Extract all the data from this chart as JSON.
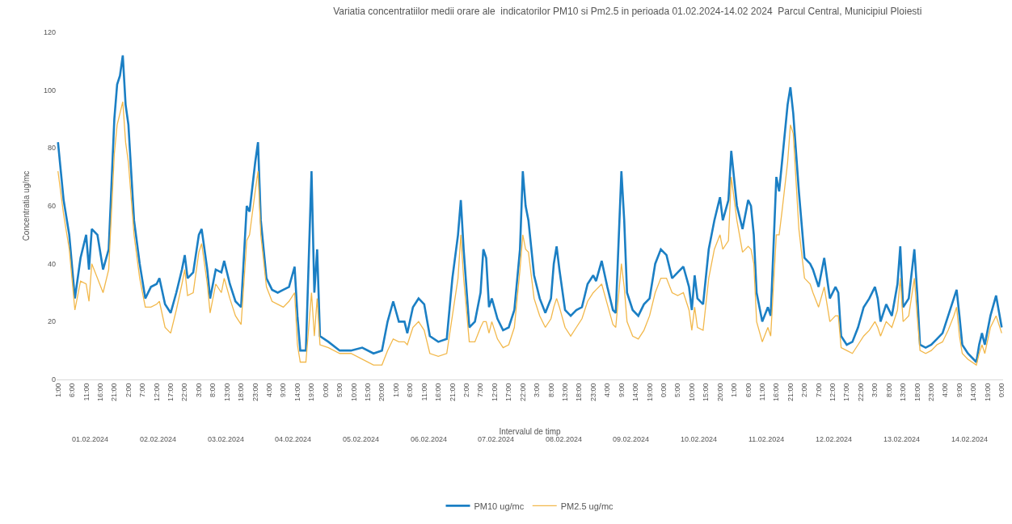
{
  "chart_data": {
    "type": "line",
    "title": "Variatia concentratiilor medii orare ale  indicatorilor PM10 si Pm2.5 in perioada 01.02.2024-14.02 2024  Parcul Central, Municipiul Ploiesti",
    "xlabel": "Intervalul de timp",
    "ylabel": "Concentratia ug/mc",
    "x": [
      "2024-02-01T01:00",
      "2024-02-01T03:00",
      "2024-02-01T05:00",
      "2024-02-01T07:00",
      "2024-02-01T09:00",
      "2024-02-01T11:00",
      "2024-02-01T12:00",
      "2024-02-01T13:00",
      "2024-02-01T15:00",
      "2024-02-01T17:00",
      "2024-02-01T19:00",
      "2024-02-01T21:00",
      "2024-02-01T22:00",
      "2024-02-01T23:00",
      "2024-02-02T00:00",
      "2024-02-02T01:00",
      "2024-02-02T02:00",
      "2024-02-02T04:00",
      "2024-02-02T06:00",
      "2024-02-02T08:00",
      "2024-02-02T10:00",
      "2024-02-02T12:00",
      "2024-02-02T13:00",
      "2024-02-02T15:00",
      "2024-02-02T17:00",
      "2024-02-02T19:00",
      "2024-02-02T21:00",
      "2024-02-02T22:00",
      "2024-02-02T23:00",
      "2024-02-03T01:00",
      "2024-02-03T03:00",
      "2024-02-03T04:00",
      "2024-02-03T06:00",
      "2024-02-03T07:00",
      "2024-02-03T09:00",
      "2024-02-03T11:00",
      "2024-02-03T12:00",
      "2024-02-03T14:00",
      "2024-02-03T16:00",
      "2024-02-03T18:00",
      "2024-02-03T20:00",
      "2024-02-03T21:00",
      "2024-02-03T23:00",
      "2024-02-04T00:00",
      "2024-02-04T01:00",
      "2024-02-04T03:00",
      "2024-02-04T05:00",
      "2024-02-04T07:00",
      "2024-02-04T09:00",
      "2024-02-04T11:00",
      "2024-02-04T13:00",
      "2024-02-04T14:00",
      "2024-02-04T15:00",
      "2024-02-04T17:00",
      "2024-02-04T19:00",
      "2024-02-04T20:00",
      "2024-02-04T21:00",
      "2024-02-04T22:00",
      "2024-02-05T01:00",
      "2024-02-05T05:00",
      "2024-02-05T09:00",
      "2024-02-05T13:00",
      "2024-02-05T17:00",
      "2024-02-05T20:00",
      "2024-02-05T22:00",
      "2024-02-06T00:00",
      "2024-02-06T02:00",
      "2024-02-06T04:00",
      "2024-02-06T05:00",
      "2024-02-06T07:00",
      "2024-02-06T09:00",
      "2024-02-06T11:00",
      "2024-02-06T13:00",
      "2024-02-06T16:00",
      "2024-02-06T19:00",
      "2024-02-06T21:00",
      "2024-02-06T23:00",
      "2024-02-07T00:00",
      "2024-02-07T01:00",
      "2024-02-07T03:00",
      "2024-02-07T05:00",
      "2024-02-07T07:00",
      "2024-02-07T08:00",
      "2024-02-07T09:00",
      "2024-02-07T10:00",
      "2024-02-07T11:00",
      "2024-02-07T13:00",
      "2024-02-07T15:00",
      "2024-02-07T17:00",
      "2024-02-07T19:00",
      "2024-02-07T21:00",
      "2024-02-07T22:00",
      "2024-02-07T23:00",
      "2024-02-08T00:00",
      "2024-02-08T02:00",
      "2024-02-08T04:00",
      "2024-02-08T06:00",
      "2024-02-08T08:00",
      "2024-02-08T09:00",
      "2024-02-08T10:00",
      "2024-02-08T11:00",
      "2024-02-08T13:00",
      "2024-02-08T15:00",
      "2024-02-08T17:00",
      "2024-02-08T19:00",
      "2024-02-08T21:00",
      "2024-02-08T23:00",
      "2024-02-09T00:00",
      "2024-02-09T02:00",
      "2024-02-09T04:00",
      "2024-02-09T06:00",
      "2024-02-09T07:00",
      "2024-02-09T09:00",
      "2024-02-09T10:00",
      "2024-02-09T11:00",
      "2024-02-09T13:00",
      "2024-02-09T15:00",
      "2024-02-09T17:00",
      "2024-02-09T19:00",
      "2024-02-09T21:00",
      "2024-02-09T23:00",
      "2024-02-10T01:00",
      "2024-02-10T03:00",
      "2024-02-10T05:00",
      "2024-02-10T07:00",
      "2024-02-10T09:00",
      "2024-02-10T10:00",
      "2024-02-10T11:00",
      "2024-02-10T12:00",
      "2024-02-10T14:00",
      "2024-02-10T16:00",
      "2024-02-10T18:00",
      "2024-02-10T20:00",
      "2024-02-10T21:00",
      "2024-02-10T23:00",
      "2024-02-11T00:00",
      "2024-02-11T02:00",
      "2024-02-11T04:00",
      "2024-02-11T06:00",
      "2024-02-11T07:00",
      "2024-02-11T08:00",
      "2024-02-11T09:00",
      "2024-02-11T11:00",
      "2024-02-11T13:00",
      "2024-02-11T14:00",
      "2024-02-11T16:00",
      "2024-02-11T17:00",
      "2024-02-11T18:00",
      "2024-02-11T20:00",
      "2024-02-11T21:00",
      "2024-02-11T22:00",
      "2024-02-12T00:00",
      "2024-02-12T02:00",
      "2024-02-12T04:00",
      "2024-02-12T05:00",
      "2024-02-12T07:00",
      "2024-02-12T09:00",
      "2024-02-12T11:00",
      "2024-02-12T13:00",
      "2024-02-12T14:00",
      "2024-02-12T15:00",
      "2024-02-12T17:00",
      "2024-02-12T19:00",
      "2024-02-12T21:00",
      "2024-02-12T23:00",
      "2024-02-13T01:00",
      "2024-02-13T03:00",
      "2024-02-13T04:00",
      "2024-02-13T05:00",
      "2024-02-13T07:00",
      "2024-02-13T09:00",
      "2024-02-13T11:00",
      "2024-02-13T12:00",
      "2024-02-13T13:00",
      "2024-02-13T15:00",
      "2024-02-13T17:00",
      "2024-02-13T18:00",
      "2024-02-13T19:00",
      "2024-02-13T21:00",
      "2024-02-13T23:00",
      "2024-02-14T01:00",
      "2024-02-14T03:00",
      "2024-02-14T05:00",
      "2024-02-14T07:00",
      "2024-02-14T08:00",
      "2024-02-14T09:00",
      "2024-02-14T10:00",
      "2024-02-14T12:00",
      "2024-02-14T15:00",
      "2024-02-14T16:00",
      "2024-02-14T17:00",
      "2024-02-14T18:00",
      "2024-02-14T20:00",
      "2024-02-14T22:00",
      "2024-02-15T00:00"
    ],
    "series": [
      {
        "name": "PM10 ug/mc",
        "color": "#1b7fc4",
        "values": [
          82,
          62,
          50,
          28,
          42,
          50,
          38,
          52,
          50,
          38,
          45,
          90,
          102,
          105,
          112,
          95,
          88,
          55,
          40,
          28,
          32,
          33,
          35,
          26,
          23,
          30,
          38,
          43,
          35,
          37,
          50,
          52,
          38,
          28,
          38,
          37,
          41,
          33,
          27,
          25,
          60,
          58,
          75,
          82,
          55,
          35,
          31,
          30,
          31,
          32,
          39,
          22,
          10,
          10,
          72,
          30,
          45,
          15,
          13,
          10,
          10,
          11,
          9,
          10,
          20,
          27,
          20,
          20,
          16,
          25,
          28,
          26,
          15,
          13,
          14,
          35,
          50,
          62,
          45,
          18,
          20,
          30,
          45,
          42,
          25,
          28,
          21,
          17,
          18,
          24,
          45,
          72,
          60,
          55,
          36,
          28,
          23,
          28,
          40,
          46,
          38,
          24,
          22,
          24,
          25,
          33,
          36,
          34,
          41,
          32,
          24,
          23,
          72,
          55,
          30,
          24,
          22,
          26,
          28,
          40,
          45,
          43,
          35,
          37,
          39,
          32,
          24,
          36,
          28,
          26,
          45,
          55,
          63,
          55,
          62,
          79,
          60,
          52,
          62,
          60,
          50,
          30,
          20,
          25,
          22,
          70,
          65,
          75,
          95,
          101,
          92,
          65,
          42,
          40,
          38,
          32,
          42,
          28,
          32,
          30,
          15,
          12,
          13,
          18,
          25,
          28,
          32,
          28,
          20,
          26,
          22,
          33,
          46,
          25,
          28,
          45,
          30,
          12,
          11,
          12,
          14,
          16,
          22,
          28,
          31,
          22,
          12,
          9,
          6,
          12,
          16,
          12,
          22,
          29,
          18
        ]
      },
      {
        "name": "PM2.5 ug/mc",
        "color": "#f2b84b",
        "values": [
          72,
          57,
          45,
          24,
          34,
          33,
          27,
          40,
          35,
          30,
          38,
          78,
          88,
          92,
          96,
          82,
          75,
          50,
          35,
          25,
          25,
          26,
          27,
          18,
          16,
          24,
          33,
          38,
          29,
          30,
          44,
          47,
          33,
          23,
          33,
          30,
          35,
          28,
          22,
          19,
          48,
          50,
          65,
          72,
          50,
          32,
          27,
          26,
          25,
          27,
          30,
          12,
          6,
          6,
          30,
          15,
          28,
          12,
          11,
          9,
          9,
          7,
          5,
          5,
          10,
          14,
          13,
          13,
          12,
          18,
          20,
          17,
          9,
          8,
          9,
          22,
          35,
          50,
          35,
          13,
          13,
          18,
          20,
          20,
          16,
          20,
          14,
          11,
          12,
          18,
          38,
          50,
          45,
          44,
          28,
          22,
          18,
          21,
          25,
          28,
          25,
          18,
          15,
          18,
          21,
          27,
          30,
          31,
          33,
          26,
          19,
          18,
          40,
          32,
          20,
          15,
          14,
          17,
          22,
          30,
          35,
          35,
          30,
          29,
          30,
          24,
          17,
          25,
          18,
          17,
          35,
          45,
          50,
          45,
          48,
          70,
          55,
          44,
          46,
          45,
          40,
          20,
          13,
          18,
          15,
          50,
          50,
          58,
          75,
          88,
          85,
          52,
          35,
          33,
          30,
          25,
          32,
          20,
          22,
          22,
          11,
          10,
          9,
          12,
          15,
          17,
          20,
          18,
          15,
          20,
          18,
          24,
          35,
          20,
          22,
          35,
          22,
          10,
          9,
          10,
          12,
          13,
          17,
          22,
          25,
          15,
          9,
          7,
          5,
          9,
          12,
          9,
          18,
          22,
          16
        ]
      }
    ],
    "xlim": [
      "2024-02-01T00:30",
      "2024-02-15T00:30"
    ],
    "xticks": [
      {
        "value": "2024-02-01T01:00",
        "label": "1:00"
      },
      {
        "value": "2024-02-01T06:00",
        "label": "6:00"
      },
      {
        "value": "2024-02-01T11:00",
        "label": "11:00"
      },
      {
        "value": "2024-02-01T16:00",
        "label": "16:00"
      },
      {
        "value": "2024-02-01T21:00",
        "label": "21:00"
      },
      {
        "value": "2024-02-02T02:00",
        "label": "2:00"
      },
      {
        "value": "2024-02-02T07:00",
        "label": "7:00"
      },
      {
        "value": "2024-02-02T12:00",
        "label": "12:00"
      },
      {
        "value": "2024-02-02T17:00",
        "label": "17:00"
      },
      {
        "value": "2024-02-02T22:00",
        "label": "22:00"
      },
      {
        "value": "2024-02-03T03:00",
        "label": "3:00"
      },
      {
        "value": "2024-02-03T08:00",
        "label": "8:00"
      },
      {
        "value": "2024-02-03T13:00",
        "label": "13:00"
      },
      {
        "value": "2024-02-03T18:00",
        "label": "18:00"
      },
      {
        "value": "2024-02-03T23:00",
        "label": "23:00"
      },
      {
        "value": "2024-02-04T04:00",
        "label": "4:00"
      },
      {
        "value": "2024-02-04T09:00",
        "label": "9:00"
      },
      {
        "value": "2024-02-04T14:00",
        "label": "14:00"
      },
      {
        "value": "2024-02-04T19:00",
        "label": "19:00"
      },
      {
        "value": "2024-02-05T00:00",
        "label": "0:00"
      },
      {
        "value": "2024-02-05T05:00",
        "label": "5:00"
      },
      {
        "value": "2024-02-05T10:00",
        "label": "10:00"
      },
      {
        "value": "2024-02-05T15:00",
        "label": "15:00"
      },
      {
        "value": "2024-02-05T20:00",
        "label": "20:00"
      },
      {
        "value": "2024-02-06T01:00",
        "label": "1:00"
      },
      {
        "value": "2024-02-06T06:00",
        "label": "6:00"
      },
      {
        "value": "2024-02-06T11:00",
        "label": "11:00"
      },
      {
        "value": "2024-02-06T16:00",
        "label": "16:00"
      },
      {
        "value": "2024-02-06T21:00",
        "label": "21:00"
      },
      {
        "value": "2024-02-07T02:00",
        "label": "2:00"
      },
      {
        "value": "2024-02-07T07:00",
        "label": "7:00"
      },
      {
        "value": "2024-02-07T12:00",
        "label": "12:00"
      },
      {
        "value": "2024-02-07T17:00",
        "label": "17:00"
      },
      {
        "value": "2024-02-07T22:00",
        "label": "22:00"
      },
      {
        "value": "2024-02-08T03:00",
        "label": "3:00"
      },
      {
        "value": "2024-02-08T08:00",
        "label": "8:00"
      },
      {
        "value": "2024-02-08T13:00",
        "label": "13:00"
      },
      {
        "value": "2024-02-08T18:00",
        "label": "18:00"
      },
      {
        "value": "2024-02-08T23:00",
        "label": "23:00"
      },
      {
        "value": "2024-02-09T04:00",
        "label": "4:00"
      },
      {
        "value": "2024-02-09T09:00",
        "label": "9:00"
      },
      {
        "value": "2024-02-09T14:00",
        "label": "14:00"
      },
      {
        "value": "2024-02-09T19:00",
        "label": "19:00"
      },
      {
        "value": "2024-02-10T00:00",
        "label": "0:00"
      },
      {
        "value": "2024-02-10T05:00",
        "label": "5:00"
      },
      {
        "value": "2024-02-10T10:00",
        "label": "10:00"
      },
      {
        "value": "2024-02-10T15:00",
        "label": "15:00"
      },
      {
        "value": "2024-02-10T20:00",
        "label": "20:00"
      },
      {
        "value": "2024-02-11T01:00",
        "label": "1:00"
      },
      {
        "value": "2024-02-11T06:00",
        "label": "6:00"
      },
      {
        "value": "2024-02-11T11:00",
        "label": "11:00"
      },
      {
        "value": "2024-02-11T16:00",
        "label": "16:00"
      },
      {
        "value": "2024-02-11T21:00",
        "label": "21:00"
      },
      {
        "value": "2024-02-12T02:00",
        "label": "2:00"
      },
      {
        "value": "2024-02-12T07:00",
        "label": "7:00"
      },
      {
        "value": "2024-02-12T12:00",
        "label": "12:00"
      },
      {
        "value": "2024-02-12T17:00",
        "label": "17:00"
      },
      {
        "value": "2024-02-12T22:00",
        "label": "22:00"
      },
      {
        "value": "2024-02-13T03:00",
        "label": "3:00"
      },
      {
        "value": "2024-02-13T08:00",
        "label": "8:00"
      },
      {
        "value": "2024-02-13T13:00",
        "label": "13:00"
      },
      {
        "value": "2024-02-13T18:00",
        "label": "18:00"
      },
      {
        "value": "2024-02-13T23:00",
        "label": "23:00"
      },
      {
        "value": "2024-02-14T04:00",
        "label": "4:00"
      },
      {
        "value": "2024-02-14T09:00",
        "label": "9:00"
      },
      {
        "value": "2024-02-14T14:00",
        "label": "14:00"
      },
      {
        "value": "2024-02-14T19:00",
        "label": "19:00"
      },
      {
        "value": "2024-02-15T00:00",
        "label": "0:00"
      }
    ],
    "ylim": [
      0,
      120
    ],
    "yticks": [
      0,
      20,
      40,
      60,
      80,
      100,
      120
    ],
    "legend": "bottom",
    "annotations": [
      "01.02.2024",
      "02.02.2024",
      "03.02.2024",
      "04.02.2024",
      "05.02.2024",
      "06.02.2024",
      "07.02.2024",
      "08.02.2024",
      "09.02.2024",
      "10.02.2024",
      "11.02.2024",
      "12.02.2024",
      "13.02.2024",
      "14.02.2024"
    ]
  }
}
